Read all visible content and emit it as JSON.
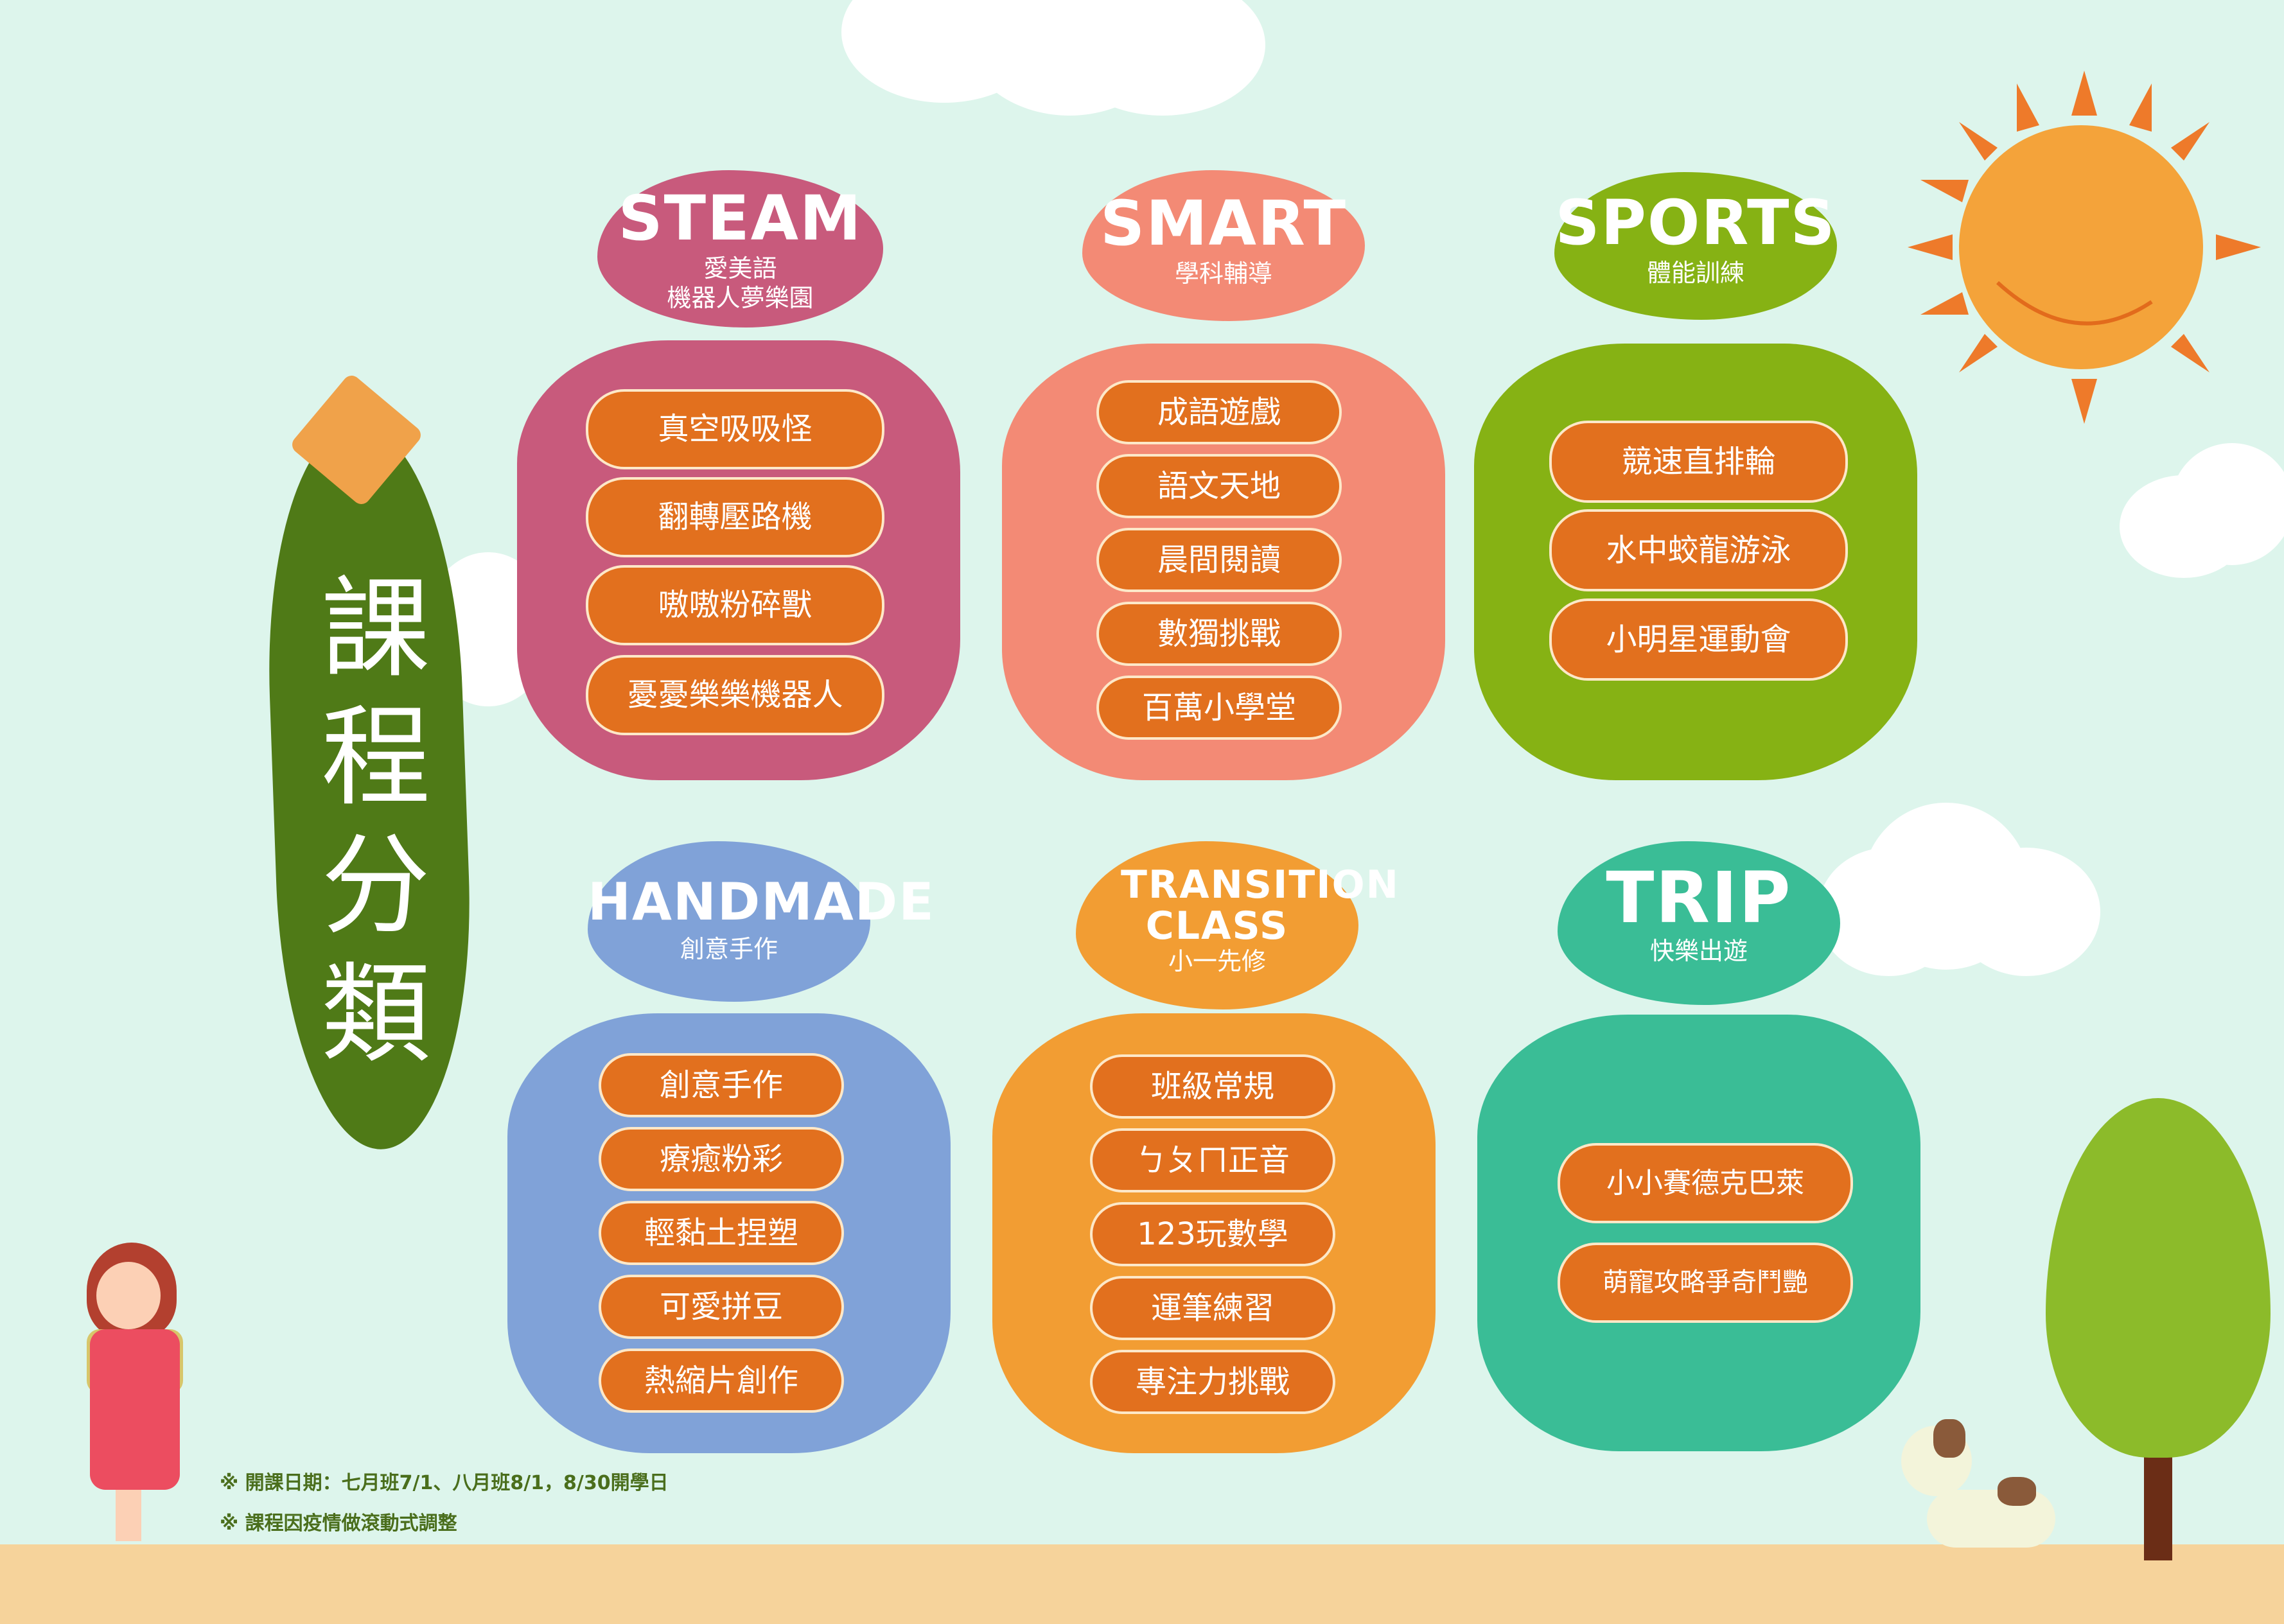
{
  "title": "課程分類",
  "categories": [
    {
      "en": "STEAM",
      "zh": [
        "愛美語",
        "機器人夢樂園"
      ],
      "color": "#c85a7c",
      "items": [
        "真空吸吸怪",
        "翻轉壓路機",
        "嗷嗷粉碎獸",
        "憂憂樂樂機器人"
      ]
    },
    {
      "en": "SMART",
      "zh": [
        "學科輔導"
      ],
      "color": "#f38a75",
      "items": [
        "成語遊戲",
        "語文天地",
        "晨間閱讀",
        "數獨挑戰",
        "百萬小學堂"
      ]
    },
    {
      "en": "SPORTS",
      "zh": [
        "體能訓練"
      ],
      "color": "#86b214",
      "items": [
        "競速直排輪",
        "水中蛟龍游泳",
        "小明星運動會"
      ]
    },
    {
      "en": "HANDMADE",
      "zh": [
        "創意手作"
      ],
      "color": "#80a2d8",
      "items": [
        "創意手作",
        "療癒粉彩",
        "輕黏土捏塑",
        "可愛拼豆",
        "熱縮片創作"
      ]
    },
    {
      "en": "TRANSITION CLASS",
      "zh": [
        "小一先修"
      ],
      "color": "#f29d33",
      "items": [
        "班級常規",
        "ㄅㄆㄇ正音",
        "123玩數學",
        "運筆練習",
        "專注力挑戰"
      ]
    },
    {
      "en": "TRIP",
      "zh": [
        "快樂出遊"
      ],
      "color": "#3abd96",
      "items": [
        "小小賽德克巴萊",
        "萌寵攻略爭奇鬥艷"
      ]
    }
  ],
  "notes": [
    "※ 開課日期：七月班7/1、八月班8/1，8/30開學日",
    "※ 課程因疫情做滾動式調整"
  ],
  "colors": {
    "background": "#ddf5ec",
    "pill": "#e2701e",
    "title_leaf": "#4f7a17",
    "sun": "#f4a33a",
    "ground": "#f6d39b"
  }
}
